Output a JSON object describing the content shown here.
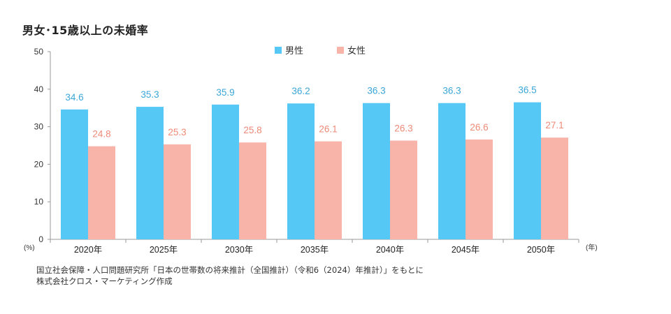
{
  "chart_data": {
    "type": "bar",
    "title": "男女･15歳以上の未婚率",
    "ylabel": "(%)",
    "xlabel": "(年)",
    "ylim": [
      0,
      50
    ],
    "yticks": [
      0,
      10,
      20,
      30,
      40,
      50
    ],
    "categories": [
      "2020年",
      "2025年",
      "2030年",
      "2035年",
      "2040年",
      "2045年",
      "2050年"
    ],
    "series": [
      {
        "name": "男性",
        "color": "#56c8f5",
        "label_color": "#3aa6d8",
        "values": [
          34.6,
          35.3,
          35.9,
          36.2,
          36.3,
          36.3,
          36.5
        ]
      },
      {
        "name": "女性",
        "color": "#f8b4a8",
        "label_color": "#ee8a78",
        "values": [
          24.8,
          25.3,
          25.8,
          26.1,
          26.3,
          26.6,
          27.1
        ]
      }
    ],
    "legend": "top-center",
    "grid": false
  },
  "source": {
    "line1": "国立社会保障・人口問題研究所「日本の世帯数の将来推計（全国推計）（令和6（2024）年推計）」をもとに",
    "line2": "株式会社クロス・マーケティング作成"
  }
}
